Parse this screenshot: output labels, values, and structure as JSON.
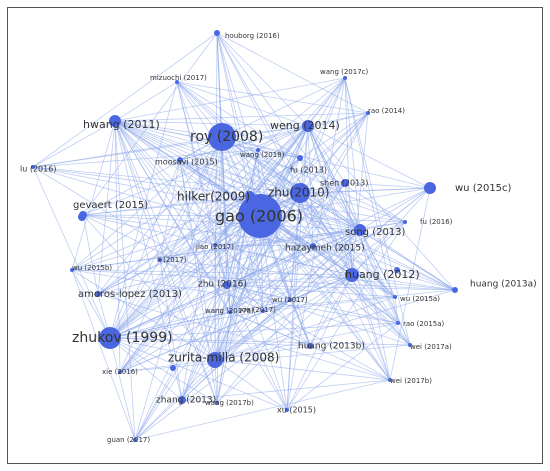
{
  "nodes": [
    {
      "label": "houborg (2016)"
    },
    {
      "label": "mizuochi (2017)"
    },
    {
      "label": "wang (2017c)"
    },
    {
      "label": "rao (2014)"
    },
    {
      "label": "hwang (2011)"
    },
    {
      "label": "roy (2008)"
    },
    {
      "label": "weng (2014)"
    },
    {
      "label": "wang (2018)"
    },
    {
      "label": "moosavi (2015)"
    },
    {
      "label": "lu (2016)"
    },
    {
      "label": "fu (2013)"
    },
    {
      "label": "shen (2013)"
    },
    {
      "label": "wu (2015c)"
    },
    {
      "label": "hilker(2009)"
    },
    {
      "label": "zhu(2010)"
    },
    {
      "label": "gao (2006)"
    },
    {
      "label": "gevaert (2015)"
    },
    {
      "label": "song (2013)"
    },
    {
      "label": "fu (2016)"
    },
    {
      "label": "hazaymeh (2015)"
    },
    {
      "label": "jiao (2017)"
    },
    {
      "label": "li (2017)"
    },
    {
      "label": "wu (2015b)"
    },
    {
      "label": "huang (2012)"
    },
    {
      "label": "huang (2013a)"
    },
    {
      "label": "amoros-lopez (2013)"
    },
    {
      "label": "zhu (2016)"
    },
    {
      "label": "wu (2017)"
    },
    {
      "label": "wu (2015a)"
    },
    {
      "label": "wang (2017a)"
    },
    {
      "label": "xie (2017)"
    },
    {
      "label": "rao (2015a)"
    },
    {
      "label": "zhukov (1999)"
    },
    {
      "label": "wei (2017a)"
    },
    {
      "label": "huang (2013b)"
    },
    {
      "label": "zurita-milla (2008)"
    },
    {
      "label": "xie (2016)"
    },
    {
      "label": "zhang (2013)"
    },
    {
      "label": "wang (2017b)"
    },
    {
      "label": "xu (2015)"
    },
    {
      "label": "wei (2017b)"
    },
    {
      "label": "guan (2017)"
    }
  ]
}
